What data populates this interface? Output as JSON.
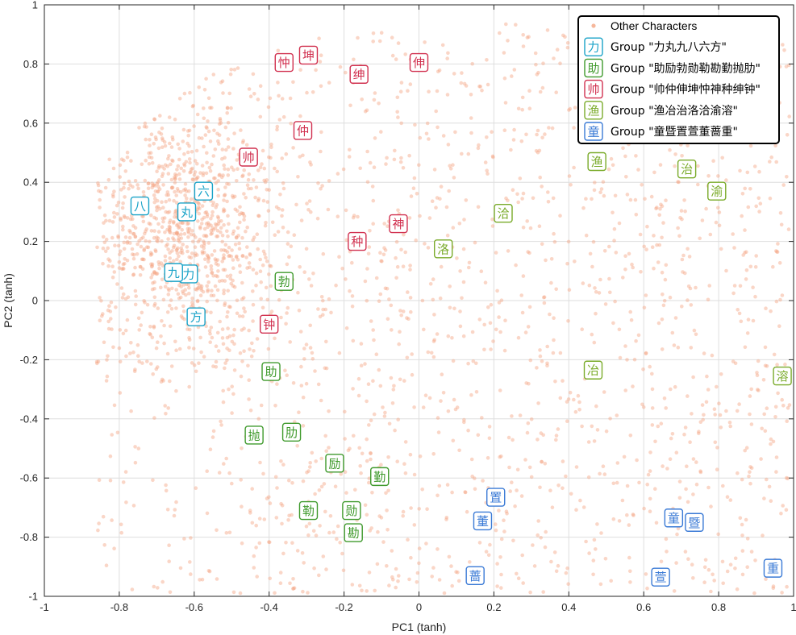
{
  "chart_data": {
    "type": "scatter",
    "title": "",
    "xlabel": "PC1 (tanh)",
    "ylabel": "PC2 (tanh)",
    "xlim": [
      -1,
      1
    ],
    "ylim": [
      -1,
      1
    ],
    "xticks": [
      -1,
      -0.8,
      -0.6,
      -0.4,
      -0.2,
      0,
      0.2,
      0.4,
      0.6,
      0.8,
      1
    ],
    "xtick_labels": [
      "-1",
      "-0.8",
      "-0.6",
      "-0.4",
      "-0.2",
      "0",
      "0.2",
      "0.4",
      "0.6",
      "0.8",
      "1"
    ],
    "yticks": [
      -1,
      -0.8,
      -0.6,
      -0.4,
      -0.2,
      0,
      0.2,
      0.4,
      0.6,
      0.8,
      1
    ],
    "ytick_labels": [
      "-1",
      "-0.8",
      "-0.6",
      "-0.4",
      "-0.2",
      "0",
      "0.2",
      "0.4",
      "0.6",
      "0.8",
      "1"
    ],
    "grid": true,
    "legend_position": "top-right",
    "background_series": {
      "name": "Other Characters",
      "color": "#f4a582",
      "count": 2600
    },
    "series": [
      {
        "name": "Group \"力丸九八六方\"",
        "color": "#1aa3c8",
        "legend_glyph": "力",
        "points": [
          {
            "char": "力",
            "x": -0.615,
            "y": 0.09
          },
          {
            "char": "丸",
            "x": -0.62,
            "y": 0.3
          },
          {
            "char": "九",
            "x": -0.655,
            "y": 0.095
          },
          {
            "char": "八",
            "x": -0.745,
            "y": 0.32
          },
          {
            "char": "六",
            "x": -0.575,
            "y": 0.37
          },
          {
            "char": "方",
            "x": -0.595,
            "y": -0.055
          }
        ]
      },
      {
        "name": "Group \"助励勃勋勒勘勤抛肋\"",
        "color": "#3f9a2c",
        "legend_glyph": "助",
        "points": [
          {
            "char": "助",
            "x": -0.395,
            "y": -0.24
          },
          {
            "char": "励",
            "x": -0.225,
            "y": -0.55
          },
          {
            "char": "勃",
            "x": -0.36,
            "y": 0.065
          },
          {
            "char": "勋",
            "x": -0.18,
            "y": -0.71
          },
          {
            "char": "勒",
            "x": -0.295,
            "y": -0.71
          },
          {
            "char": "勘",
            "x": -0.175,
            "y": -0.785
          },
          {
            "char": "勤",
            "x": -0.105,
            "y": -0.595
          },
          {
            "char": "抛",
            "x": -0.44,
            "y": -0.455
          },
          {
            "char": "肋",
            "x": -0.34,
            "y": -0.445
          }
        ]
      },
      {
        "name": "Group \"帅仲伸坤忡神种绅钟\"",
        "color": "#d1304f",
        "legend_glyph": "帅",
        "points": [
          {
            "char": "帅",
            "x": -0.455,
            "y": 0.485
          },
          {
            "char": "仲",
            "x": -0.31,
            "y": 0.575
          },
          {
            "char": "伸",
            "x": 0.0,
            "y": 0.805
          },
          {
            "char": "坤",
            "x": -0.295,
            "y": 0.83
          },
          {
            "char": "忡",
            "x": -0.36,
            "y": 0.805
          },
          {
            "char": "神",
            "x": -0.055,
            "y": 0.26
          },
          {
            "char": "种",
            "x": -0.165,
            "y": 0.2
          },
          {
            "char": "绅",
            "x": -0.16,
            "y": 0.765
          },
          {
            "char": "钟",
            "x": -0.4,
            "y": -0.08
          }
        ]
      },
      {
        "name": "Group \"渔冶治洛洽渝溶\"",
        "color": "#7aab2a",
        "legend_glyph": "渔",
        "points": [
          {
            "char": "渔",
            "x": 0.475,
            "y": 0.47
          },
          {
            "char": "冶",
            "x": 0.465,
            "y": -0.235
          },
          {
            "char": "治",
            "x": 0.715,
            "y": 0.445
          },
          {
            "char": "洛",
            "x": 0.065,
            "y": 0.175
          },
          {
            "char": "洽",
            "x": 0.225,
            "y": 0.295
          },
          {
            "char": "渝",
            "x": 0.795,
            "y": 0.37
          },
          {
            "char": "溶",
            "x": 0.97,
            "y": -0.255
          }
        ]
      },
      {
        "name": "Group \"童暨置萱董蔷重\"",
        "color": "#3a7ad6",
        "legend_glyph": "童",
        "points": [
          {
            "char": "童",
            "x": 0.68,
            "y": -0.735
          },
          {
            "char": "暨",
            "x": 0.735,
            "y": -0.75
          },
          {
            "char": "置",
            "x": 0.205,
            "y": -0.665
          },
          {
            "char": "萱",
            "x": 0.645,
            "y": -0.935
          },
          {
            "char": "董",
            "x": 0.17,
            "y": -0.745
          },
          {
            "char": "蔷",
            "x": 0.15,
            "y": -0.93
          },
          {
            "char": "重",
            "x": 0.945,
            "y": -0.905
          }
        ]
      }
    ]
  }
}
